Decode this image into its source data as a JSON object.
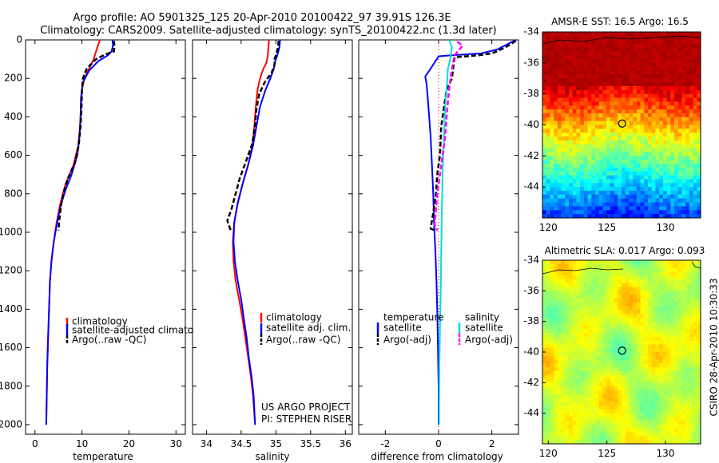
{
  "title_line1": "Argo profile: AO 5901325_125 20-Apr-2010 20100422_97 39.91S 126.3E",
  "title_line2": "Climatology: CARS2009. Satellite-adjusted climatology: synTS_20100422.nc (1.3d later)",
  "side_label": "CSIRO 28-Apr-2010 10:30:33",
  "project_line1": "US ARGO PROJECT",
  "project_line2": "PI: STEPHEN RISER",
  "colors": {
    "climatology": "#ff0000",
    "satellite": "#0000ff",
    "argo": "#000000",
    "sat_salinity": "#00dddd",
    "argo_adj_salinity": "#ff00ff"
  },
  "chart_data": [
    {
      "type": "line",
      "id": "temperature",
      "xlabel": "temperature",
      "xticks": [
        0,
        10,
        20,
        30
      ],
      "xlim": [
        -2,
        32
      ],
      "yticks": [
        0,
        200,
        400,
        600,
        800,
        1000,
        1200,
        1400,
        1600,
        1800,
        2000
      ],
      "ylim": [
        2050,
        0
      ],
      "y_reversed": true,
      "legend": [
        "climatology",
        "satellite-adjusted climatology",
        "Argo(..raw -QC)"
      ],
      "series": [
        {
          "name": "climatology",
          "style": "solid",
          "color": "#ff0000",
          "points": [
            [
              13.8,
              0
            ],
            [
              13.4,
              30
            ],
            [
              13,
              60
            ],
            [
              12.5,
              100
            ],
            [
              11.5,
              150
            ],
            [
              10.5,
              200
            ],
            [
              10,
              260
            ],
            [
              9.8,
              350
            ],
            [
              9.6,
              450
            ],
            [
              9.2,
              550
            ],
            [
              8.2,
              650
            ],
            [
              6.5,
              750
            ],
            [
              5.4,
              850
            ],
            [
              4.6,
              950
            ],
            [
              4,
              1050
            ],
            [
              3.5,
              1150
            ],
            [
              3.2,
              1250
            ],
            [
              3,
              1400
            ],
            [
              2.8,
              1550
            ],
            [
              2.6,
              1700
            ],
            [
              2.5,
              1850
            ],
            [
              2.4,
              2000
            ]
          ]
        },
        {
          "name": "satellite-adjusted climatology",
          "style": "solid",
          "color": "#0000ff",
          "points": [
            [
              16.5,
              0
            ],
            [
              16.6,
              30
            ],
            [
              16.3,
              60
            ],
            [
              15.5,
              80
            ],
            [
              13.5,
              110
            ],
            [
              11.5,
              160
            ],
            [
              10.2,
              220
            ],
            [
              9.8,
              300
            ],
            [
              9.7,
              400
            ],
            [
              9.5,
              500
            ],
            [
              9,
              600
            ],
            [
              7.8,
              700
            ],
            [
              6.5,
              780
            ],
            [
              5.5,
              860
            ],
            [
              4.8,
              940
            ],
            [
              4,
              1050
            ],
            [
              3.5,
              1150
            ],
            [
              3.2,
              1250
            ],
            [
              3,
              1400
            ],
            [
              2.8,
              1550
            ],
            [
              2.6,
              1700
            ],
            [
              2.5,
              1850
            ],
            [
              2.4,
              2000
            ]
          ]
        },
        {
          "name": "Argo(..raw -QC)",
          "style": "dashed",
          "color": "#000000",
          "points": [
            [
              16.8,
              5
            ],
            [
              16.9,
              30
            ],
            [
              16.8,
              60
            ],
            [
              15,
              75
            ],
            [
              13,
              100
            ],
            [
              11,
              150
            ],
            [
              10.2,
              200
            ],
            [
              10,
              260
            ],
            [
              9.9,
              350
            ],
            [
              9.7,
              450
            ],
            [
              9.3,
              550
            ],
            [
              8.5,
              640
            ],
            [
              7,
              720
            ],
            [
              6,
              800
            ],
            [
              5.5,
              870
            ],
            [
              5.2,
              930
            ],
            [
              5,
              990
            ]
          ]
        }
      ]
    },
    {
      "type": "line",
      "id": "salinity",
      "xlabel": "salinity",
      "xticks": [
        34,
        34.5,
        35,
        35.5,
        36
      ],
      "xlim": [
        33.8,
        36.1
      ],
      "yticks": [],
      "ylim": [
        2050,
        0
      ],
      "y_reversed": true,
      "legend": [
        "climatology",
        "satellite adj. clim.",
        "Argo(..raw -QC)"
      ],
      "series": [
        {
          "name": "climatology",
          "style": "solid",
          "color": "#ff0000",
          "points": [
            [
              34.9,
              0
            ],
            [
              34.89,
              50
            ],
            [
              34.88,
              90
            ],
            [
              34.86,
              120
            ],
            [
              34.82,
              150
            ],
            [
              34.78,
              190
            ],
            [
              34.74,
              250
            ],
            [
              34.71,
              350
            ],
            [
              34.69,
              450
            ],
            [
              34.66,
              550
            ],
            [
              34.6,
              650
            ],
            [
              34.52,
              750
            ],
            [
              34.45,
              850
            ],
            [
              34.4,
              950
            ],
            [
              34.38,
              1050
            ],
            [
              34.39,
              1150
            ],
            [
              34.42,
              1250
            ],
            [
              34.47,
              1350
            ],
            [
              34.52,
              1450
            ],
            [
              34.56,
              1550
            ],
            [
              34.6,
              1650
            ],
            [
              34.64,
              1750
            ],
            [
              34.67,
              1850
            ],
            [
              34.7,
              2000
            ]
          ]
        },
        {
          "name": "satellite adj. clim.",
          "style": "solid",
          "color": "#0000ff",
          "points": [
            [
              35.06,
              0
            ],
            [
              35.05,
              40
            ],
            [
              35.02,
              80
            ],
            [
              34.99,
              110
            ],
            [
              34.97,
              150
            ],
            [
              34.92,
              200
            ],
            [
              34.85,
              260
            ],
            [
              34.77,
              350
            ],
            [
              34.72,
              450
            ],
            [
              34.67,
              550
            ],
            [
              34.6,
              650
            ],
            [
              34.52,
              750
            ],
            [
              34.45,
              850
            ],
            [
              34.4,
              950
            ],
            [
              34.39,
              1050
            ],
            [
              34.41,
              1150
            ],
            [
              34.45,
              1250
            ],
            [
              34.5,
              1350
            ],
            [
              34.54,
              1450
            ],
            [
              34.58,
              1550
            ],
            [
              34.61,
              1650
            ],
            [
              34.65,
              1750
            ],
            [
              34.68,
              1850
            ],
            [
              34.7,
              2000
            ]
          ]
        },
        {
          "name": "Argo(..raw -QC)",
          "style": "dashed",
          "color": "#000000",
          "points": [
            [
              35.04,
              5
            ],
            [
              35.03,
              40
            ],
            [
              35.0,
              80
            ],
            [
              34.98,
              100
            ],
            [
              34.98,
              130
            ],
            [
              34.94,
              170
            ],
            [
              34.84,
              220
            ],
            [
              34.76,
              280
            ],
            [
              34.72,
              360
            ],
            [
              34.7,
              440
            ],
            [
              34.66,
              540
            ],
            [
              34.56,
              640
            ],
            [
              34.48,
              720
            ],
            [
              34.42,
              800
            ],
            [
              34.36,
              880
            ],
            [
              34.3,
              940
            ],
            [
              34.35,
              990
            ]
          ]
        }
      ]
    },
    {
      "type": "line",
      "id": "difference",
      "xlabel": "difference from climatology",
      "xticks": [
        -2,
        0,
        2
      ],
      "xlim": [
        -3,
        3
      ],
      "yticks": [],
      "ylim": [
        2050,
        0
      ],
      "y_reversed": true,
      "legend_left": [
        "temperature",
        "satellite",
        "Argo(-adj)"
      ],
      "legend_right": [
        "salinity",
        "satellite",
        "Argo(-adj)"
      ],
      "series": [
        {
          "name": "temperature satellite",
          "style": "solid",
          "color": "#0000ff",
          "points": [
            [
              2.9,
              0
            ],
            [
              2.2,
              50
            ],
            [
              1.6,
              70
            ],
            [
              0.5,
              80
            ],
            [
              0,
              85
            ],
            [
              -0.3,
              150
            ],
            [
              -0.5,
              190
            ],
            [
              -0.45,
              230
            ],
            [
              -0.38,
              350
            ],
            [
              -0.3,
              500
            ],
            [
              -0.25,
              650
            ],
            [
              -0.2,
              800
            ],
            [
              -0.17,
              950
            ],
            [
              -0.12,
              1100
            ],
            [
              -0.08,
              1250
            ],
            [
              -0.05,
              1400
            ],
            [
              -0.03,
              1550
            ],
            [
              0,
              1800
            ],
            [
              0,
              2000
            ]
          ]
        },
        {
          "name": "temperature Argo(-adj)",
          "style": "dashed",
          "color": "#000000",
          "points": [
            [
              2.9,
              5
            ],
            [
              2.5,
              40
            ],
            [
              2,
              70
            ],
            [
              1.5,
              80
            ],
            [
              0.6,
              90
            ],
            [
              0.5,
              200
            ],
            [
              0.3,
              260
            ],
            [
              0.2,
              350
            ],
            [
              0.1,
              450
            ],
            [
              0.05,
              600
            ],
            [
              -0.05,
              700
            ],
            [
              -0.1,
              800
            ],
            [
              -0.2,
              900
            ],
            [
              -0.3,
              980
            ],
            [
              -0.15,
              990
            ]
          ]
        },
        {
          "name": "salinity satellite",
          "style": "solid",
          "color": "#00dddd",
          "points": [
            [
              0.4,
              0
            ],
            [
              0.5,
              40
            ],
            [
              0.45,
              90
            ],
            [
              0.35,
              150
            ],
            [
              0.3,
              250
            ],
            [
              0.25,
              350
            ],
            [
              0.2,
              500
            ],
            [
              0.15,
              700
            ],
            [
              0.12,
              900
            ],
            [
              0.1,
              1100
            ],
            [
              0.08,
              1300
            ],
            [
              0.05,
              1500
            ],
            [
              0.03,
              1700
            ],
            [
              0.02,
              1900
            ],
            [
              0.02,
              2000
            ]
          ]
        },
        {
          "name": "salinity Argo(-adj)",
          "style": "dashed",
          "color": "#ff00ff",
          "points": [
            [
              0.7,
              10
            ],
            [
              0.9,
              30
            ],
            [
              0.6,
              80
            ],
            [
              0.5,
              150
            ],
            [
              0.4,
              250
            ],
            [
              0.35,
              320
            ],
            [
              0.3,
              400
            ],
            [
              0.25,
              500
            ],
            [
              0.15,
              600
            ],
            [
              0.05,
              700
            ],
            [
              -0.05,
              800
            ],
            [
              -0.1,
              880
            ],
            [
              -0.15,
              960
            ],
            [
              -0.05,
              990
            ]
          ]
        }
      ]
    },
    {
      "type": "heatmap",
      "id": "sst_map",
      "title": "AMSR-E SST: 16.5 Argo: 16.5",
      "xticks": [
        120,
        125,
        130
      ],
      "yticks": [
        -34,
        -36,
        -38,
        -40,
        -42,
        -44
      ],
      "xlim": [
        119.5,
        133
      ],
      "ylim": [
        -46,
        -34
      ],
      "marker": {
        "lon": 126.3,
        "lat": -39.91
      }
    },
    {
      "type": "heatmap",
      "id": "sla_map",
      "title": "Altimetric SLA: 0.017 Argo: 0.093",
      "xticks": [
        120,
        125,
        130
      ],
      "yticks": [
        -34,
        -36,
        -38,
        -40,
        -42,
        -44
      ],
      "xlim": [
        119.5,
        133
      ],
      "ylim": [
        -46,
        -34
      ],
      "marker": {
        "lon": 126.3,
        "lat": -39.91
      }
    }
  ]
}
